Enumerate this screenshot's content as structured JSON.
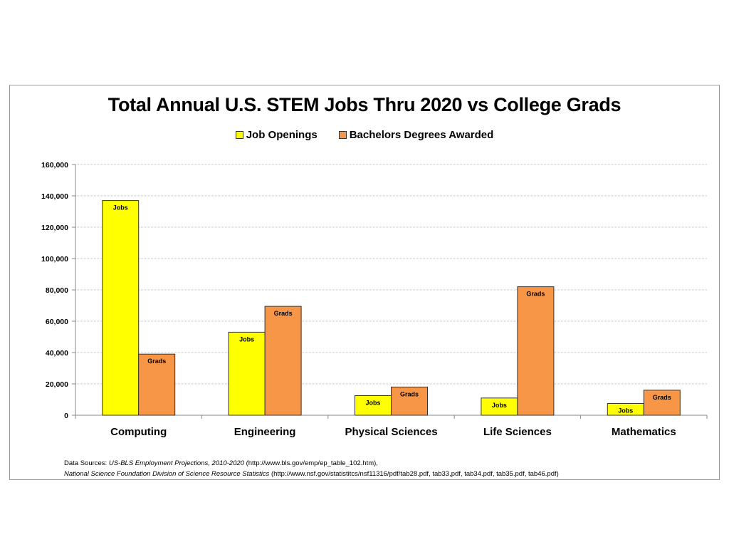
{
  "colors": {
    "jobs": "#ffff00",
    "grads": "#f79646",
    "bar_stroke": "#333333",
    "grid": "#bdbdbd"
  },
  "chart_data": {
    "type": "bar",
    "title": "Total Annual U.S. STEM Jobs Thru 2020 vs College Grads",
    "categories": [
      "Computing",
      "Engineering",
      "Physical Sciences",
      "Life Sciences",
      "Mathematics"
    ],
    "series": [
      {
        "name": "Job Openings",
        "short_label": "Jobs",
        "values": [
          137000,
          53000,
          12500,
          11000,
          7500
        ]
      },
      {
        "name": "Bachelors Degrees Awarded",
        "short_label": "Grads",
        "values": [
          39000,
          69500,
          18000,
          82000,
          16000
        ]
      }
    ],
    "ylim": [
      0,
      160000
    ],
    "yticks": [
      "0",
      "20,000",
      "40,000",
      "60,000",
      "80,000",
      "100,000",
      "120,000",
      "140,000",
      "160,000"
    ],
    "legend_position": "top",
    "grid": true
  },
  "sources": {
    "prefix": "Data Sources: ",
    "line1_italic": "US-BLS Employment Projections, 2010-2020",
    "line1_rest": " (http://www.bls.gov/emp/ep_table_102.htm),",
    "line2_italic": "National Science Foundation Division of Science Resource Statistics",
    "line2_rest": " (http://www.nsf.gov/statistitcs/nsf11316/pdf/tab28.pdf, tab33,pdf, tab34.pdf, tab35.pdf, tab46.pdf)"
  }
}
